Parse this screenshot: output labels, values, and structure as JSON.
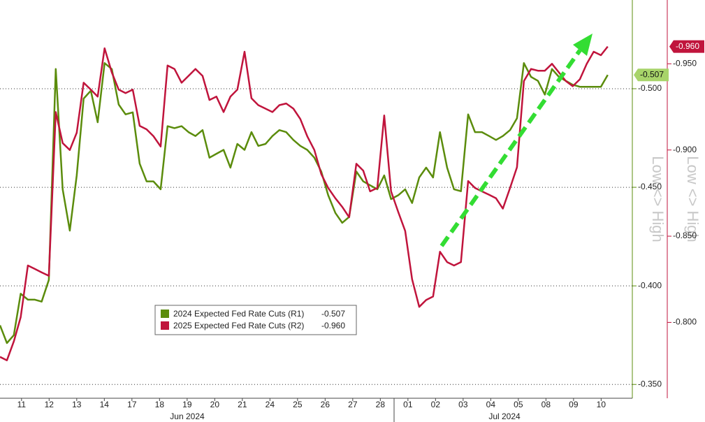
{
  "chart_data": {
    "type": "line",
    "x": [
      -0.78,
      -0.53,
      -0.28,
      -0.03,
      0.23,
      0.48,
      0.73,
      0.99,
      1.24,
      1.49,
      1.75,
      2.0,
      2.25,
      2.51,
      2.76,
      3.01,
      3.27,
      3.52,
      3.77,
      4.03,
      4.28,
      4.53,
      4.78,
      5.04,
      5.29,
      5.54,
      5.8,
      6.05,
      6.3,
      6.56,
      6.81,
      7.06,
      7.32,
      7.57,
      7.82,
      8.08,
      8.33,
      8.58,
      8.84,
      9.09,
      9.34,
      9.59,
      9.85,
      10.1,
      10.35,
      10.61,
      10.86,
      11.11,
      11.37,
      11.62,
      11.87,
      12.13,
      12.38,
      12.63,
      12.89,
      13.14,
      13.39,
      13.65,
      13.9,
      14.15,
      14.41,
      14.66,
      14.91,
      15.16,
      15.42,
      15.67,
      15.92,
      16.18,
      16.43,
      16.68,
      16.94,
      17.19,
      17.44,
      17.7,
      17.95,
      18.2,
      18.46,
      18.71,
      18.96,
      19.22,
      19.47,
      19.72,
      19.97,
      20.23,
      20.48,
      20.73,
      20.99,
      21.24
    ],
    "series": [
      {
        "name": "2024 Expected Fed Rate Cuts (R1)",
        "color": "#5b8c0c",
        "axis": "y",
        "last_value_label": "-0.507",
        "values": [
          -0.38,
          -0.371,
          -0.375,
          -0.396,
          -0.393,
          -0.393,
          -0.392,
          -0.403,
          -0.51,
          -0.449,
          -0.428,
          -0.456,
          -0.495,
          -0.499,
          -0.483,
          -0.513,
          -0.51,
          -0.492,
          -0.487,
          -0.488,
          -0.462,
          -0.453,
          -0.453,
          -0.449,
          -0.481,
          -0.48,
          -0.481,
          -0.478,
          -0.476,
          -0.479,
          -0.465,
          -0.467,
          -0.469,
          -0.46,
          -0.472,
          -0.469,
          -0.478,
          -0.471,
          -0.472,
          -0.476,
          -0.479,
          -0.478,
          -0.474,
          -0.471,
          -0.469,
          -0.465,
          -0.458,
          -0.446,
          -0.437,
          -0.432,
          -0.435,
          -0.458,
          -0.453,
          -0.451,
          -0.449,
          -0.456,
          -0.444,
          -0.446,
          -0.449,
          -0.442,
          -0.455,
          -0.46,
          -0.455,
          -0.478,
          -0.46,
          -0.449,
          -0.448,
          -0.487,
          -0.478,
          -0.478,
          -0.476,
          -0.474,
          -0.476,
          -0.479,
          -0.485,
          -0.513,
          -0.506,
          -0.504,
          -0.497,
          -0.51,
          -0.506,
          -0.504,
          -0.502,
          -0.501,
          -0.501,
          -0.501,
          -0.501,
          -0.507
        ]
      },
      {
        "name": "2025 Expected Fed Rate Cuts (R2)",
        "color": "#c0143c",
        "axis": "y2",
        "last_value_label": "-0.960",
        "values": [
          -0.78,
          -0.778,
          -0.789,
          -0.803,
          -0.833,
          -0.831,
          -0.829,
          -0.827,
          -0.922,
          -0.904,
          -0.9,
          -0.91,
          -0.939,
          -0.935,
          -0.931,
          -0.959,
          -0.945,
          -0.935,
          -0.933,
          -0.935,
          -0.914,
          -0.912,
          -0.908,
          -0.902,
          -0.949,
          -0.947,
          -0.939,
          -0.943,
          -0.947,
          -0.943,
          -0.929,
          -0.931,
          -0.922,
          -0.931,
          -0.935,
          -0.957,
          -0.93,
          -0.926,
          -0.924,
          -0.922,
          -0.926,
          -0.927,
          -0.924,
          -0.918,
          -0.908,
          -0.9,
          -0.886,
          -0.878,
          -0.872,
          -0.867,
          -0.861,
          -0.892,
          -0.888,
          -0.876,
          -0.878,
          -0.92,
          -0.876,
          -0.864,
          -0.853,
          -0.825,
          -0.809,
          -0.813,
          -0.815,
          -0.841,
          -0.835,
          -0.833,
          -0.835,
          -0.882,
          -0.878,
          -0.876,
          -0.874,
          -0.872,
          -0.866,
          -0.878,
          -0.89,
          -0.94,
          -0.947,
          -0.946,
          -0.946,
          -0.95,
          -0.945,
          -0.94,
          -0.937,
          -0.941,
          -0.95,
          -0.957,
          -0.955,
          -0.96
        ]
      }
    ],
    "xlim": [
      -0.78,
      22.13
    ],
    "xticks": [
      {
        "value": 0,
        "label": "11"
      },
      {
        "value": 1,
        "label": "12"
      },
      {
        "value": 2,
        "label": "13"
      },
      {
        "value": 3,
        "label": "14"
      },
      {
        "value": 4,
        "label": "17"
      },
      {
        "value": 5,
        "label": "18"
      },
      {
        "value": 6,
        "label": "19"
      },
      {
        "value": 7,
        "label": "20"
      },
      {
        "value": 8,
        "label": "21"
      },
      {
        "value": 9,
        "label": "24"
      },
      {
        "value": 10,
        "label": "25"
      },
      {
        "value": 11,
        "label": "26"
      },
      {
        "value": 12,
        "label": "27"
      },
      {
        "value": 13,
        "label": "28"
      },
      {
        "value": 14,
        "label": "01"
      },
      {
        "value": 15,
        "label": "02"
      },
      {
        "value": 16,
        "label": "03"
      },
      {
        "value": 17,
        "label": "04"
      },
      {
        "value": 18,
        "label": "05"
      },
      {
        "value": 19,
        "label": "08"
      },
      {
        "value": 20,
        "label": "09"
      },
      {
        "value": 21,
        "label": "10"
      }
    ],
    "month_labels": [
      "Jun 2024",
      "Jul 2024"
    ],
    "ylim": [
      -0.545,
      -0.343
    ],
    "yticks": [
      {
        "value": -0.5,
        "label": "-0.500"
      },
      {
        "value": -0.45,
        "label": "-0.450"
      },
      {
        "value": -0.4,
        "label": "-0.400"
      },
      {
        "value": -0.35,
        "label": "-0.350"
      }
    ],
    "y2lim": [
      -0.987,
      -0.756
    ],
    "y2ticks": [
      {
        "value": -0.95,
        "label": "-0.950"
      },
      {
        "value": -0.9,
        "label": "-0.900"
      },
      {
        "value": -0.85,
        "label": "-0.850"
      },
      {
        "value": -0.8,
        "label": "-0.800"
      }
    ],
    "y_reversed": true,
    "y_label": "Low <> High",
    "y2_label": "Low <> High",
    "grid": true,
    "legend": "lower-left"
  }
}
